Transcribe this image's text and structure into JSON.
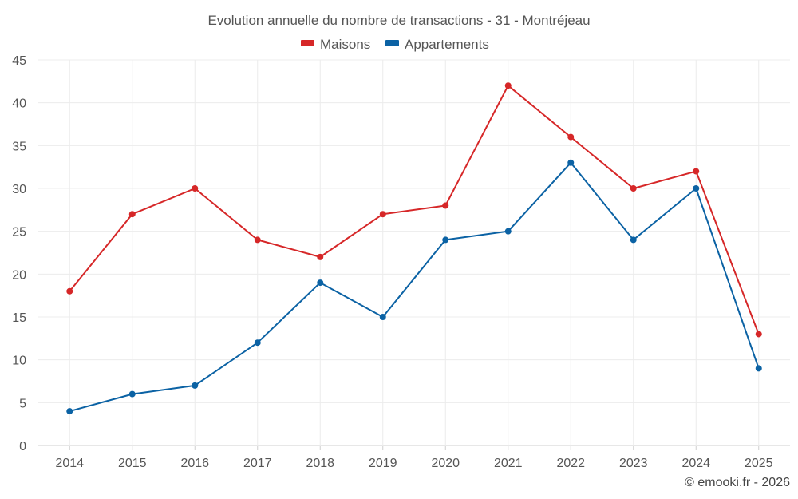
{
  "chart_data": {
    "type": "line",
    "title": "Evolution annuelle du nombre de transactions - 31 - Montréjeau",
    "categories": [
      "2014",
      "2015",
      "2016",
      "2017",
      "2018",
      "2019",
      "2020",
      "2021",
      "2022",
      "2023",
      "2024",
      "2025"
    ],
    "series": [
      {
        "name": "Maisons",
        "color": "#d62728",
        "values": [
          18,
          27,
          30,
          24,
          22,
          27,
          28,
          42,
          36,
          30,
          32,
          13
        ]
      },
      {
        "name": "Appartements",
        "color": "#0b62a4",
        "values": [
          4,
          6,
          7,
          12,
          19,
          15,
          24,
          25,
          33,
          24,
          30,
          9
        ]
      }
    ],
    "ylim": [
      0,
      45
    ],
    "yticks": [
      0,
      5,
      10,
      15,
      20,
      25,
      30,
      35,
      40,
      45
    ],
    "xlabel": "",
    "ylabel": "",
    "legend_position": "top-center",
    "grid": true
  },
  "credit": "© emooki.fr - 2026"
}
